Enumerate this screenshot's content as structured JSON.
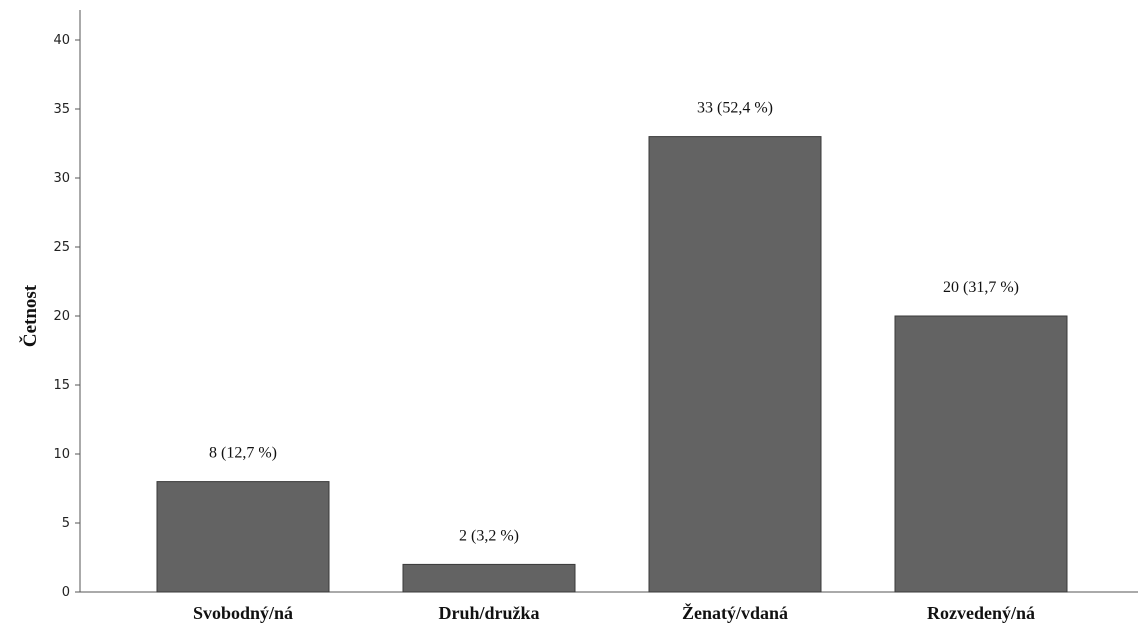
{
  "chart_data": {
    "type": "bar",
    "categories": [
      "Svobodný/ná",
      "Druh/družka",
      "Ženatý/vdaná",
      "Rozvedený/ná"
    ],
    "values": [
      8,
      2,
      33,
      20
    ],
    "data_labels": [
      "8 (12,7 %)",
      "2 (3,2 %)",
      "33 (52,4 %)",
      "20 (31,7 %)"
    ],
    "title": "",
    "xlabel": "",
    "ylabel": "Četnost",
    "ylim": [
      0,
      40
    ],
    "yticks": [
      0,
      5,
      10,
      15,
      20,
      25,
      30,
      35,
      40
    ],
    "grid": false,
    "bar_color": "#636363",
    "bar_edge_color": "#3a3a3a",
    "axis_color": "#555555"
  }
}
